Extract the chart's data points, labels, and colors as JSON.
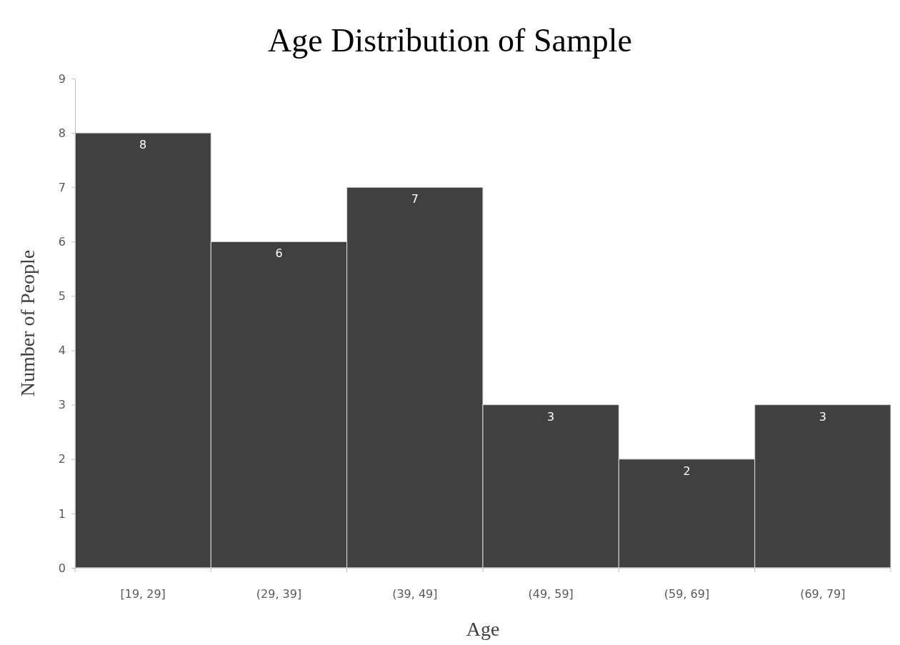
{
  "chart_data": {
    "type": "bar",
    "title": "Age Distribution of Sample",
    "xlabel": "Age",
    "ylabel": "Number of People",
    "categories": [
      "[19, 29]",
      "(29, 39]",
      "(39, 49]",
      "(49, 59]",
      "(59, 69]",
      "(69, 79]"
    ],
    "values": [
      8,
      6,
      7,
      3,
      2,
      3
    ],
    "color": "#404040",
    "ylim": [
      0,
      9
    ],
    "yticks": [
      0,
      1,
      2,
      3,
      4,
      5,
      6,
      7,
      8,
      9
    ],
    "grid": false,
    "data_labels": true
  }
}
